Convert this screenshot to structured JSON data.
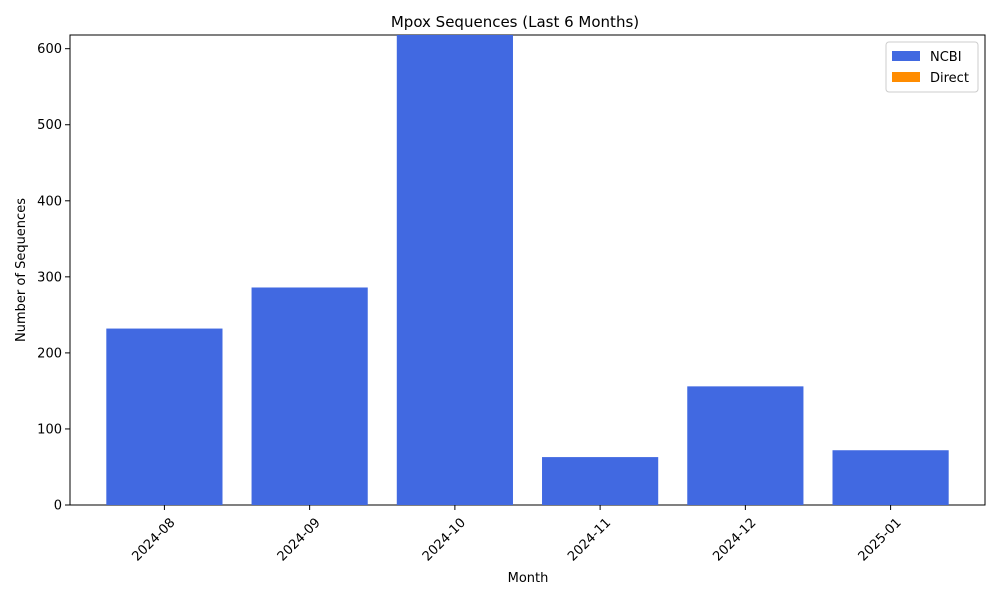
{
  "chart_data": {
    "type": "bar",
    "stacked": true,
    "title": "Mpox Sequences (Last 6 Months)",
    "xlabel": "Month",
    "ylabel": "Number of Sequences",
    "categories": [
      "2024-08",
      "2024-09",
      "2024-10",
      "2024-11",
      "2024-12",
      "2025-01"
    ],
    "series": [
      {
        "name": "NCBI",
        "color": "#4169e1",
        "values": [
          232,
          286,
          618,
          63,
          156,
          72
        ]
      },
      {
        "name": "Direct",
        "color": "#ff8c00",
        "values": [
          0,
          0,
          0,
          0,
          0,
          0
        ]
      }
    ],
    "ylim": [
      0,
      618
    ],
    "yticks": [
      0,
      100,
      200,
      300,
      400,
      500,
      600
    ],
    "xtick_rotation": 45,
    "grid": false,
    "legend_position": "top-right"
  }
}
